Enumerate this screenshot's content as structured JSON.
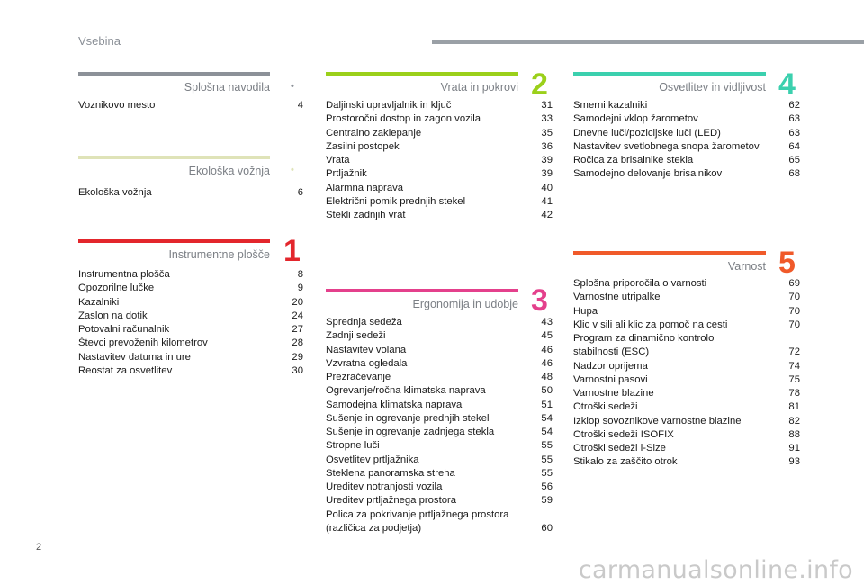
{
  "header": {
    "title": "Vsebina"
  },
  "page_number": "2",
  "watermark": "carmanualsonline.info",
  "colors": {
    "gray": "#8c9198",
    "lime": "#dfe3b8",
    "red": "#e3262c",
    "green": "#9bd01a",
    "pink": "#e4408c",
    "teal": "#3bd0ae",
    "orange": "#f05a2a"
  },
  "sections": {
    "splosna": {
      "title": "Splošna navodila",
      "number": "•",
      "entries": [
        {
          "label": "Voznikovo mesto",
          "page": "4"
        }
      ]
    },
    "ekoloska": {
      "title": "Ekološka vožnja",
      "number": "•",
      "entries": [
        {
          "label": "Ekološka vožnja",
          "page": "6"
        }
      ]
    },
    "instrumentne": {
      "title": "Instrumentne plošče",
      "number": "1",
      "entries": [
        {
          "label": "Instrumentna plošča",
          "page": "8"
        },
        {
          "label": "Opozorilne lučke",
          "page": "9"
        },
        {
          "label": "Kazalniki",
          "page": "20"
        },
        {
          "label": "Zaslon na dotik",
          "page": "24"
        },
        {
          "label": "Potovalni računalnik",
          "page": "27"
        },
        {
          "label": "Števci prevoženih kilometrov",
          "page": "28"
        },
        {
          "label": "Nastavitev datuma in ure",
          "page": "29"
        },
        {
          "label": "Reostat za osvetlitev",
          "page": "30"
        }
      ]
    },
    "vrata": {
      "title": "Vrata in pokrovi",
      "number": "2",
      "entries": [
        {
          "label": "Daljinski upravljalnik in ključ",
          "page": "31"
        },
        {
          "label": "Prostoročni dostop in zagon vozila",
          "page": "33"
        },
        {
          "label": "Centralno zaklepanje",
          "page": "35"
        },
        {
          "label": "Zasilni postopek",
          "page": "36"
        },
        {
          "label": "Vrata",
          "page": "39"
        },
        {
          "label": "Prtljažnik",
          "page": "39"
        },
        {
          "label": "Alarmna naprava",
          "page": "40"
        },
        {
          "label": "Električni pomik prednjih stekel",
          "page": "41"
        },
        {
          "label": "Stekli zadnjih vrat",
          "page": "42"
        }
      ]
    },
    "ergonomija": {
      "title": "Ergonomija in udobje",
      "number": "3",
      "entries": [
        {
          "label": "Sprednja sedeža",
          "page": "43"
        },
        {
          "label": "Zadnji sedeži",
          "page": "45"
        },
        {
          "label": "Nastavitev volana",
          "page": "46"
        },
        {
          "label": "Vzvratna ogledala",
          "page": "46"
        },
        {
          "label": "Prezračevanje",
          "page": "48"
        },
        {
          "label": "Ogrevanje/ročna klimatska naprava",
          "page": "50"
        },
        {
          "label": "Samodejna klimatska naprava",
          "page": "51"
        },
        {
          "label": "Sušenje in ogrevanje prednjih stekel",
          "page": "54"
        },
        {
          "label": "Sušenje in ogrevanje zadnjega stekla",
          "page": "54"
        },
        {
          "label": "Stropne luči",
          "page": "55"
        },
        {
          "label": "Osvetlitev prtljažnika",
          "page": "55"
        },
        {
          "label": "Steklena panoramska streha",
          "page": "55"
        },
        {
          "label": "Ureditev notranjosti vozila",
          "page": "56"
        },
        {
          "label": "Ureditev prtljažnega prostora",
          "page": "59"
        },
        {
          "label": "Polica za pokrivanje prtljažnega prostora\n(različica za podjetja)",
          "page": "60"
        }
      ]
    },
    "osvetlitev": {
      "title": "Osvetlitev in vidljivost",
      "number": "4",
      "entries": [
        {
          "label": "Smerni kazalniki",
          "page": "62"
        },
        {
          "label": "Samodejni vklop žarometov",
          "page": "63"
        },
        {
          "label": "Dnevne luči/pozicijske luči (LED)",
          "page": "63"
        },
        {
          "label": "Nastavitev svetlobnega snopa žarometov",
          "page": "64"
        },
        {
          "label": "Ročica za brisalnike stekla",
          "page": "65"
        },
        {
          "label": "Samodejno delovanje brisalnikov",
          "page": "68"
        }
      ]
    },
    "varnost": {
      "title": "Varnost",
      "number": "5",
      "entries": [
        {
          "label": "Splošna priporočila o varnosti",
          "page": "69"
        },
        {
          "label": "Varnostne utripalke",
          "page": "70"
        },
        {
          "label": "Hupa",
          "page": "70"
        },
        {
          "label": "Klic v sili ali klic za pomoč na cesti",
          "page": "70"
        },
        {
          "label": "Program za dinamično kontrolo\nstabilnosti (ESC)",
          "page": "72"
        },
        {
          "label": "Nadzor oprijema",
          "page": "74"
        },
        {
          "label": "Varnostni pasovi",
          "page": "75"
        },
        {
          "label": "Varnostne blazine",
          "page": "78"
        },
        {
          "label": "Otroški sedeži",
          "page": "81"
        },
        {
          "label": "Izklop sovoznikove varnostne blazine",
          "page": "82"
        },
        {
          "label": "Otroški sedeži ISOFIX",
          "page": "88"
        },
        {
          "label": "Otroški sedeži i-Size",
          "page": "91"
        },
        {
          "label": "Stikalo za zaščito otrok",
          "page": "93"
        }
      ]
    }
  }
}
